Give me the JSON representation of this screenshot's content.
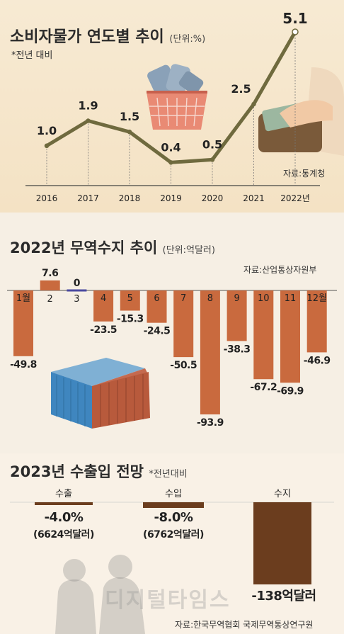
{
  "cpi": {
    "title": "소비자물가 연도별 추이",
    "unit": "(단위:%)",
    "note": "*전년 대비",
    "source": "자료:통계청",
    "color_line": "#6f6a3e",
    "chart_data": {
      "type": "line",
      "categories": [
        "2016",
        "2017",
        "2018",
        "2019",
        "2020",
        "2021",
        "2022년"
      ],
      "values": [
        1.0,
        1.9,
        1.5,
        0.4,
        0.5,
        2.5,
        5.1
      ],
      "value_labels": [
        "1.0",
        "1.9",
        "1.5",
        "0.4",
        "0.5",
        "2.5",
        "5.1"
      ],
      "ylim": [
        0,
        5.1
      ]
    }
  },
  "trade": {
    "title": "2022년 무역수지 추이",
    "unit": "(단위:억달러)",
    "source": "자료:산업통상자원부",
    "color_neg": "#c96a3e",
    "color_pos": "#c96a3e",
    "color_zero": "#4a4aa0",
    "chart_data": {
      "type": "bar",
      "categories": [
        "1월",
        "2",
        "3",
        "4",
        "5",
        "6",
        "7",
        "8",
        "9",
        "10",
        "11",
        "12월"
      ],
      "values": [
        -49.8,
        7.6,
        0,
        -23.5,
        -15.3,
        -24.5,
        -50.5,
        -93.9,
        -38.3,
        -67.2,
        -69.9,
        -46.9
      ],
      "value_labels": [
        "-49.8",
        "7.6",
        "0",
        "-23.5",
        "-15.3",
        "-24.5",
        "-50.5",
        "-93.9",
        "-38.3",
        "-67.2",
        "-69.9",
        "-46.9"
      ]
    }
  },
  "outlook": {
    "title": "2023년 수출입 전망",
    "note": "*전년대비",
    "source": "자료:한국무역협회 국제무역통상연구원",
    "color_bar": "#6b3d1e",
    "chart_data": {
      "type": "bar",
      "categories": [
        "수출",
        "수입",
        "수지"
      ],
      "values": [
        -4.0,
        -8.0,
        -138
      ],
      "items": [
        {
          "label": "수출",
          "value": "-4.0%",
          "sub": "(6624억달러)"
        },
        {
          "label": "수입",
          "value": "-8.0%",
          "sub": "(6762억달러)"
        },
        {
          "label": "수지",
          "value": "-138억달러",
          "sub": ""
        }
      ]
    }
  },
  "watermark": "디지털타임스"
}
